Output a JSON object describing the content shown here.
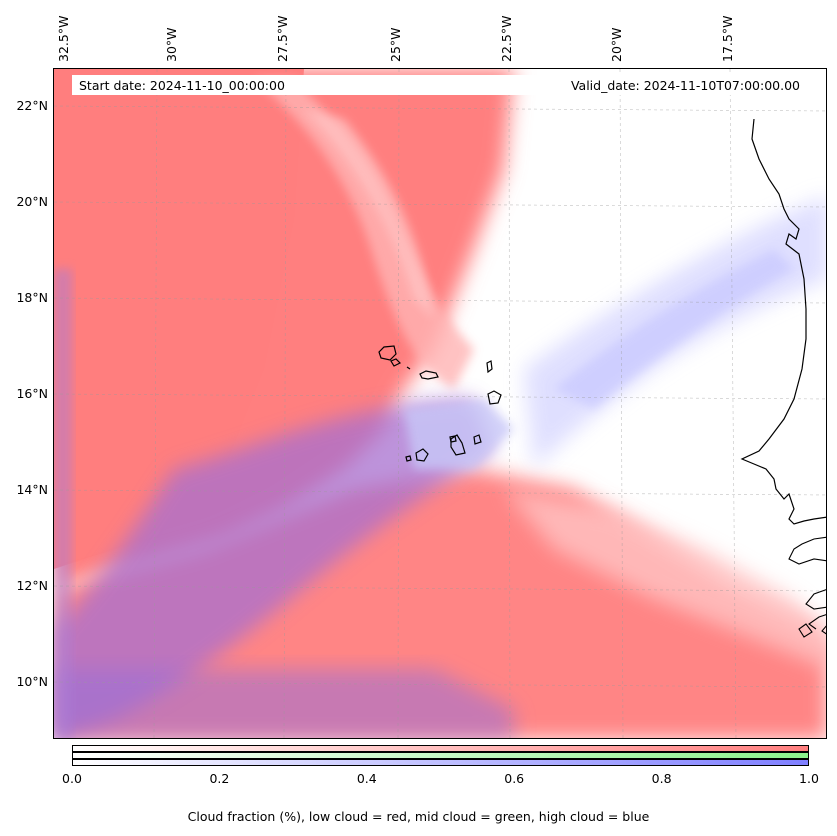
{
  "map": {
    "title_start": "Start date: 2024-11-10_00:00:00",
    "title_valid": "Valid_date: 2024-11-10T07:00:00.00",
    "lon_labels": [
      "32.5°W",
      "30°W",
      "27.5°W",
      "25°W",
      "22.5°W",
      "20°W",
      "17.5°W"
    ],
    "lat_labels": [
      "22°N",
      "20°N",
      "18°N",
      "16°N",
      "14°N",
      "12°N",
      "10°N"
    ],
    "layers": {
      "low_cloud_color": "#ff7f7f",
      "mid_cloud_color": "#7fff7f",
      "high_cloud_color": "#7f7fff"
    }
  },
  "colorbar": {
    "ticks": [
      "0.0",
      "0.2",
      "0.4",
      "0.6",
      "0.8",
      "1.0"
    ],
    "label": "Cloud fraction (%), low cloud = red, mid cloud = green, high cloud = blue",
    "bars": [
      {
        "name": "low",
        "color": "#ff7f7f"
      },
      {
        "name": "mid",
        "color": "#8cf28c"
      },
      {
        "name": "high",
        "color": "#7f7fff"
      }
    ]
  }
}
